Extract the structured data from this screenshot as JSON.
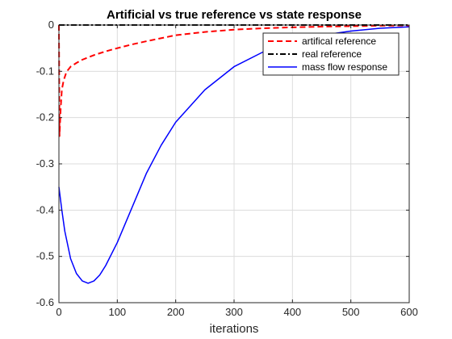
{
  "chart_data": {
    "type": "line",
    "title": "Artificial vs true reference vs state response",
    "xlabel": "iterations",
    "ylabel": "",
    "xlim": [
      0,
      600
    ],
    "ylim": [
      -0.6,
      0
    ],
    "xticks": [
      0,
      100,
      200,
      300,
      400,
      500,
      600
    ],
    "yticks": [
      -0.6,
      -0.5,
      -0.4,
      -0.3,
      -0.2,
      -0.1,
      0
    ],
    "xtick_labels": [
      "0",
      "100",
      "200",
      "300",
      "400",
      "500",
      "600"
    ],
    "ytick_labels": [
      "-0.6",
      "-0.5",
      "-0.4",
      "-0.3",
      "-0.2",
      "-0.1",
      "0"
    ],
    "grid": true,
    "legend_position": "top-right",
    "series": [
      {
        "name": "artifical reference",
        "style": "dashed",
        "color": "#ff0000",
        "x": [
          0,
          1,
          2,
          3,
          5,
          8,
          12,
          15,
          20,
          30,
          40,
          50,
          60,
          80,
          100,
          125,
          150,
          200,
          250,
          300,
          350,
          400,
          450,
          500,
          550,
          600
        ],
        "y": [
          0,
          -0.24,
          -0.21,
          -0.18,
          -0.14,
          -0.12,
          -0.105,
          -0.098,
          -0.09,
          -0.082,
          -0.075,
          -0.07,
          -0.065,
          -0.057,
          -0.05,
          -0.042,
          -0.035,
          -0.022,
          -0.015,
          -0.01,
          -0.007,
          -0.005,
          -0.0035,
          -0.0025,
          -0.0015,
          -0.001
        ]
      },
      {
        "name": "real reference",
        "style": "dashdot",
        "color": "#000000",
        "x": [
          0,
          600
        ],
        "y": [
          0,
          0
        ]
      },
      {
        "name": "mass flow response",
        "style": "solid",
        "color": "#0000ff",
        "x": [
          0,
          5,
          10,
          20,
          30,
          40,
          50,
          60,
          70,
          80,
          100,
          120,
          150,
          175,
          200,
          250,
          300,
          350,
          400,
          450,
          500,
          550,
          600
        ],
        "y": [
          -0.35,
          -0.4,
          -0.445,
          -0.505,
          -0.537,
          -0.553,
          -0.558,
          -0.553,
          -0.54,
          -0.52,
          -0.47,
          -0.41,
          -0.32,
          -0.26,
          -0.21,
          -0.14,
          -0.09,
          -0.058,
          -0.035,
          -0.022,
          -0.013,
          -0.007,
          -0.004
        ]
      }
    ]
  }
}
